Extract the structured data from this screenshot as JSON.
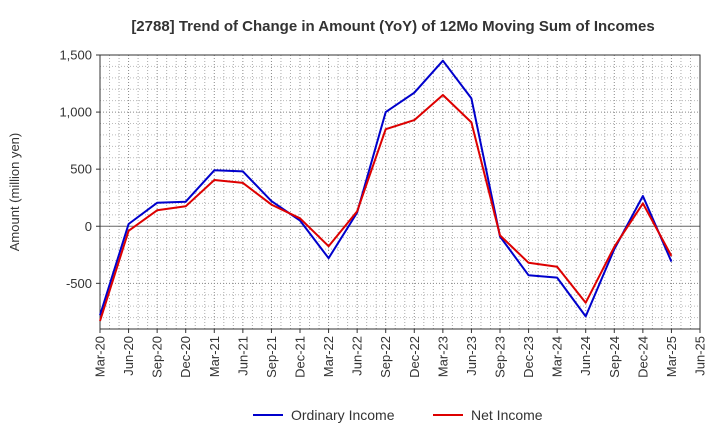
{
  "chart_data": {
    "type": "line",
    "title": "[2788]  Trend of Change in Amount (YoY) of 12Mo Moving Sum of Incomes",
    "xlabel": "",
    "ylabel": "Amount (million yen)",
    "ylim": [
      -900,
      1500
    ],
    "yticks": [
      -500,
      0,
      500,
      1000,
      1500
    ],
    "ytick_labels": [
      "-500",
      "0",
      "500",
      "1,000",
      "1,500"
    ],
    "categories": [
      "Mar-20",
      "Jun-20",
      "Sep-20",
      "Dec-20",
      "Mar-21",
      "Jun-21",
      "Sep-21",
      "Dec-21",
      "Mar-22",
      "Jun-22",
      "Sep-22",
      "Dec-22",
      "Mar-23",
      "Jun-23",
      "Sep-23",
      "Dec-23",
      "Mar-24",
      "Jun-24",
      "Sep-24",
      "Dec-24",
      "Mar-25",
      "Jun-25"
    ],
    "grid": true,
    "legend_position": "bottom",
    "series": [
      {
        "name": "Ordinary Income",
        "color": "#0000cc",
        "values": [
          -780,
          20,
          205,
          215,
          490,
          480,
          220,
          50,
          -280,
          120,
          1000,
          1170,
          1450,
          1120,
          -90,
          -430,
          -450,
          -790,
          -200,
          265,
          -310,
          null
        ]
      },
      {
        "name": "Net Income",
        "color": "#dd0000",
        "values": [
          -830,
          -40,
          140,
          175,
          405,
          380,
          190,
          70,
          -175,
          130,
          850,
          930,
          1150,
          910,
          -80,
          -320,
          -355,
          -670,
          -180,
          200,
          -260,
          null
        ]
      }
    ]
  }
}
